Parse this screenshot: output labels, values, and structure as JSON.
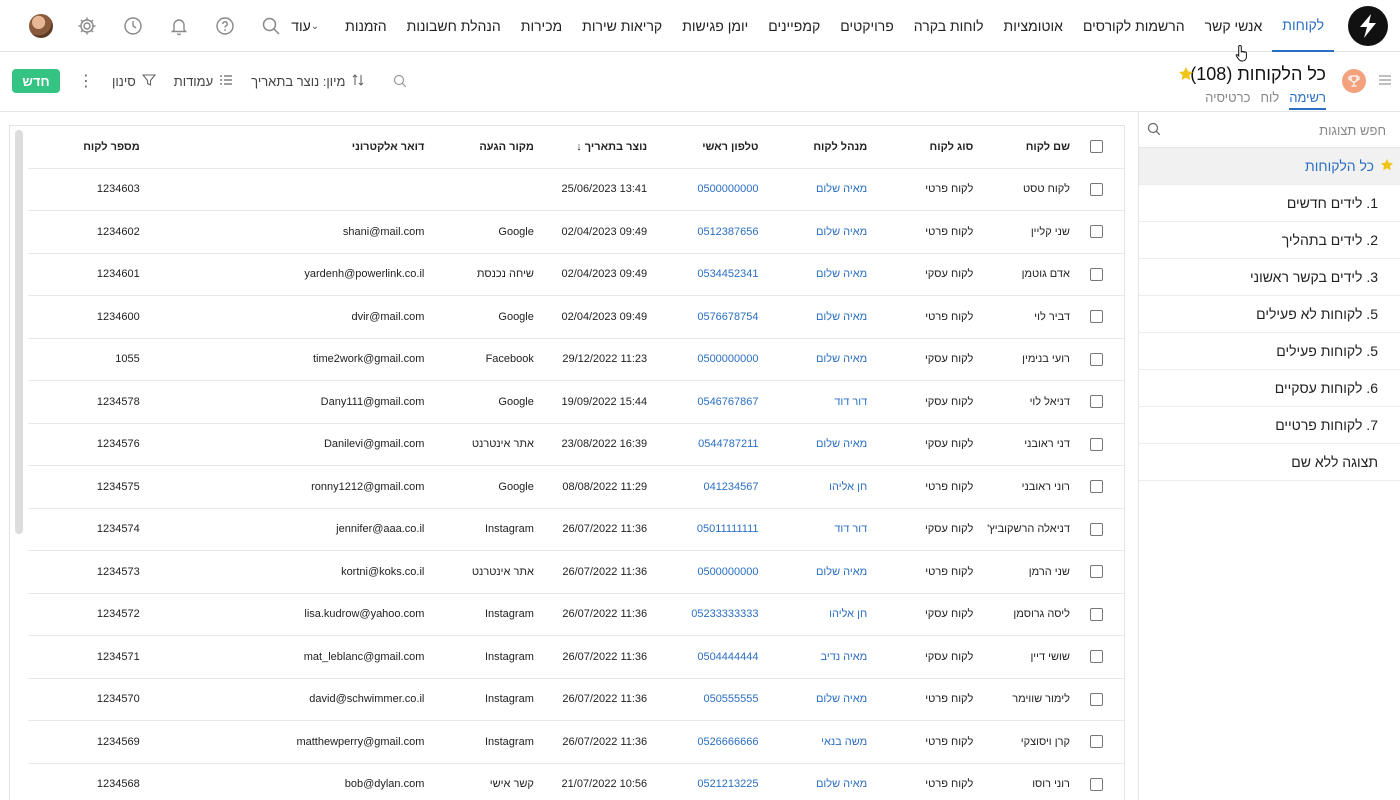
{
  "nav": {
    "items": [
      "לקוחות",
      "אנשי קשר",
      "הרשמות לקורסים",
      "אוטומציות",
      "לוחות בקרה",
      "פרויקטים",
      "קמפיינים",
      "יומן פגישות",
      "קריאות שירות",
      "מכירות",
      "הנהלת חשבונות",
      "הזמנות"
    ],
    "more_label": "עוד",
    "active": "לקוחות"
  },
  "header": {
    "title": "כל הלקוחות",
    "count": "(108)",
    "tabs": [
      "רשימה",
      "לוח",
      "כרטיסיה"
    ]
  },
  "toolbar": {
    "sort_label": "מיון: נוצר בתאריך",
    "columns_label": "עמודות",
    "filter_label": "סינון",
    "new_label": "חדש"
  },
  "sidebar": {
    "search_placeholder": "חפש תצוגות",
    "items": [
      "כל הלקוחות",
      "1. לידים חדשים",
      "2. לידים בתהליך",
      "3. לידים בקשר ראשוני",
      "5. לקוחות לא פעילים",
      "5. לקוחות פעילים",
      "6. לקוחות עסקיים",
      "7. לקוחות פרטיים",
      "תצוגה ללא שם"
    ]
  },
  "table": {
    "headers": {
      "name": "שם לקוח",
      "type": "סוג לקוח",
      "manager": "מנהל לקוח",
      "phone": "טלפון ראשי",
      "created": "נוצר בתאריך",
      "source": "מקור הגעה",
      "email": "דואר אלקטרוני",
      "number": "מספר לקוח"
    },
    "sort_arrow": "↓",
    "rows": [
      {
        "name": "לקוח טסט",
        "type": "לקוח פרטי",
        "manager": "מאיה שלום",
        "phone": "0500000000",
        "created": "25/06/2023 13:41",
        "source": "",
        "email": "",
        "number": "1234603"
      },
      {
        "name": "שני קליין",
        "type": "לקוח פרטי",
        "manager": "מאיה שלום",
        "phone": "0512387656",
        "created": "02/04/2023 09:49",
        "source": "Google",
        "email": "shani@mail.com",
        "number": "1234602"
      },
      {
        "name": "אדם גוטמן",
        "type": "לקוח עסקי",
        "manager": "מאיה שלום",
        "phone": "0534452341",
        "created": "02/04/2023 09:49",
        "source": "שיחה נכנסת",
        "email": "yardenh@powerlink.co.il",
        "number": "1234601"
      },
      {
        "name": "דביר לוי",
        "type": "לקוח פרטי",
        "manager": "מאיה שלום",
        "phone": "0576678754",
        "created": "02/04/2023 09:49",
        "source": "Google",
        "email": "dvir@mail.com",
        "number": "1234600"
      },
      {
        "name": "רועי בנימין",
        "type": "לקוח עסקי",
        "manager": "מאיה שלום",
        "phone": "0500000000",
        "created": "29/12/2022 11:23",
        "source": "Facebook",
        "email": "time2work@gmail.com",
        "number": "1055"
      },
      {
        "name": "דניאל לוי",
        "type": "לקוח עסקי",
        "manager": "דור דוד",
        "phone": "0546767867",
        "created": "19/09/2022 15:44",
        "source": "Google",
        "email": "Dany111@gmail.com",
        "number": "1234578"
      },
      {
        "name": "דני ראובני",
        "type": "לקוח עסקי",
        "manager": "מאיה שלום",
        "phone": "0544787211",
        "created": "23/08/2022 16:39",
        "source": "אתר אינטרנט",
        "email": "Danilevi@gmail.com",
        "number": "1234576"
      },
      {
        "name": "רוני ראובני",
        "type": "לקוח פרטי",
        "manager": "חן אליהו",
        "phone": "041234567",
        "created": "08/08/2022 11:29",
        "source": "Google",
        "email": "ronny1212@gmail.com",
        "number": "1234575"
      },
      {
        "name": "דניאלה הרשקוביץ'",
        "type": "לקוח עסקי",
        "manager": "דור דוד",
        "phone": "05011111111",
        "created": "26/07/2022 11:36",
        "source": "Instagram",
        "email": "jennifer@aaa.co.il",
        "number": "1234574"
      },
      {
        "name": "שני הרמן",
        "type": "לקוח פרטי",
        "manager": "מאיה שלום",
        "phone": "0500000000",
        "created": "26/07/2022 11:36",
        "source": "אתר אינטרנט",
        "email": "kortni@koks.co.il",
        "number": "1234573"
      },
      {
        "name": "ליסה גרוסמן",
        "type": "לקוח עסקי",
        "manager": "חן אליהו",
        "phone": "05233333333",
        "created": "26/07/2022 11:36",
        "source": "Instagram",
        "email": "lisa.kudrow@yahoo.com",
        "number": "1234572"
      },
      {
        "name": "שושי דיין",
        "type": "לקוח עסקי",
        "manager": "מאיה נדיב",
        "phone": "0504444444",
        "created": "26/07/2022 11:36",
        "source": "Instagram",
        "email": "mat_leblanc@gmail.com",
        "number": "1234571"
      },
      {
        "name": "לימור שווימר",
        "type": "לקוח פרטי",
        "manager": "מאיה שלום",
        "phone": "050555555",
        "created": "26/07/2022 11:36",
        "source": "Instagram",
        "email": "david@schwimmer.co.il",
        "number": "1234570"
      },
      {
        "name": "קרן ויסוצקי",
        "type": "לקוח פרטי",
        "manager": "משה בנאי",
        "phone": "0526666666",
        "created": "26/07/2022 11:36",
        "source": "Instagram",
        "email": "matthewperry@gmail.com",
        "number": "1234569"
      },
      {
        "name": "רוני רוסו",
        "type": "לקוח פרטי",
        "manager": "מאיה שלום",
        "phone": "0521213225",
        "created": "21/07/2022 10:56",
        "source": "קשר אישי",
        "email": "bob@dylan.com",
        "number": "1234568"
      }
    ]
  },
  "colors": {
    "accent": "#2b6fc2",
    "new_button": "#34c383",
    "star": "#f0c419",
    "trophy": "#f4a27d"
  },
  "icons": [
    "logo-icon",
    "search-icon",
    "help-icon",
    "bell-icon",
    "clock-icon",
    "gear-icon",
    "avatar",
    "star-icon",
    "trophy-icon",
    "sort-icon",
    "columns-icon",
    "filter-icon",
    "kebab-icon",
    "checkbox"
  ]
}
